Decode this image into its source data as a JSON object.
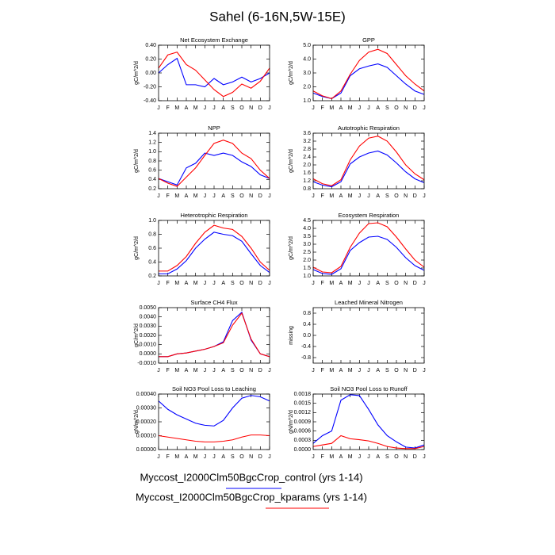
{
  "title": "Sahel (6-16N,5W-15E)",
  "chart_data": [
    {
      "type": "line",
      "title": "Net Ecosystem Exchange",
      "ylabel": "gC/m^2/d",
      "categories": [
        "J",
        "F",
        "M",
        "A",
        "M",
        "J",
        "J",
        "A",
        "S",
        "O",
        "N",
        "D",
        "J"
      ],
      "ylim": [
        -0.4,
        0.4
      ],
      "yticks": [
        {
          "value": -0.4,
          "label": "-0.40"
        },
        {
          "value": -0.2,
          "label": "-0.20"
        },
        {
          "value": 0,
          "label": "0.00"
        },
        {
          "value": 0.2,
          "label": "0.20"
        },
        {
          "value": 0.4,
          "label": "0.40"
        }
      ],
      "series": [
        {
          "name": "Myccost_I2000Clm50BgcCrop_control (yrs 1-14)",
          "color": "#0000ff",
          "values": [
            0.0,
            0.12,
            0.21,
            -0.17,
            -0.17,
            -0.2,
            -0.08,
            -0.17,
            -0.13,
            -0.06,
            -0.13,
            -0.08,
            0.0
          ]
        },
        {
          "name": "Myccost_I2000Clm50BgcCrop_kparams (yrs 1-14)",
          "color": "#ff0000",
          "values": [
            0.07,
            0.26,
            0.3,
            0.12,
            0.04,
            -0.1,
            -0.24,
            -0.34,
            -0.28,
            -0.16,
            -0.22,
            -0.12,
            0.07
          ]
        }
      ]
    },
    {
      "type": "line",
      "title": "GPP",
      "ylabel": "gC/m^2/d",
      "categories": [
        "J",
        "F",
        "M",
        "A",
        "M",
        "J",
        "J",
        "A",
        "S",
        "O",
        "N",
        "D",
        "J"
      ],
      "ylim": [
        1,
        5
      ],
      "yticks": [
        {
          "value": 1,
          "label": "1.0"
        },
        {
          "value": 2,
          "label": "2.0"
        },
        {
          "value": 3,
          "label": "3.0"
        },
        {
          "value": 4,
          "label": "4.0"
        },
        {
          "value": 5,
          "label": "5.0"
        }
      ],
      "series": [
        {
          "color": "#0000ff",
          "values": [
            1.55,
            1.3,
            1.15,
            1.55,
            2.8,
            3.3,
            3.5,
            3.65,
            3.4,
            2.8,
            2.2,
            1.7,
            1.45
          ]
        },
        {
          "color": "#ff0000",
          "values": [
            1.7,
            1.35,
            1.15,
            1.7,
            2.9,
            3.9,
            4.5,
            4.7,
            4.4,
            3.6,
            2.8,
            2.2,
            1.7
          ]
        }
      ]
    },
    {
      "type": "line",
      "title": "NPP",
      "ylabel": "gC/m^2/d",
      "categories": [
        "J",
        "F",
        "M",
        "A",
        "M",
        "J",
        "J",
        "A",
        "S",
        "O",
        "N",
        "D",
        "J"
      ],
      "ylim": [
        0.2,
        1.4
      ],
      "yticks": [
        0.2,
        0.4,
        0.6,
        0.8,
        {
          "value": 1,
          "label": "1.0"
        },
        1.2,
        1.4
      ],
      "series": [
        {
          "color": "#0000ff",
          "values": [
            0.42,
            0.35,
            0.28,
            0.65,
            0.75,
            0.97,
            0.92,
            0.97,
            0.92,
            0.78,
            0.68,
            0.5,
            0.42
          ]
        },
        {
          "color": "#ff0000",
          "values": [
            0.42,
            0.32,
            0.25,
            0.45,
            0.65,
            0.92,
            1.18,
            1.25,
            1.18,
            0.97,
            0.85,
            0.6,
            0.42
          ]
        }
      ]
    },
    {
      "type": "line",
      "title": "Autotrophic Respiration",
      "ylabel": "gC/m^2/d",
      "categories": [
        "J",
        "F",
        "M",
        "A",
        "M",
        "J",
        "J",
        "A",
        "S",
        "O",
        "N",
        "D",
        "J"
      ],
      "ylim": [
        0.8,
        3.6
      ],
      "yticks": [
        0.8,
        1.2,
        1.6,
        {
          "value": 2,
          "label": "2.0"
        },
        2.4,
        2.8,
        3.2,
        3.6
      ],
      "series": [
        {
          "color": "#0000ff",
          "values": [
            1.15,
            0.98,
            0.9,
            1.15,
            2.05,
            2.4,
            2.6,
            2.7,
            2.5,
            2.1,
            1.65,
            1.3,
            1.1
          ]
        },
        {
          "color": "#ff0000",
          "values": [
            1.3,
            1.05,
            0.95,
            1.25,
            2.25,
            2.95,
            3.35,
            3.45,
            3.2,
            2.65,
            2.0,
            1.55,
            1.25
          ]
        }
      ]
    },
    {
      "type": "line",
      "title": "Heterotrophic Respiration",
      "ylabel": "gC/m^2/d",
      "categories": [
        "J",
        "F",
        "M",
        "A",
        "M",
        "J",
        "J",
        "A",
        "S",
        "O",
        "N",
        "D",
        "J"
      ],
      "ylim": [
        0.2,
        1
      ],
      "yticks": [
        0.2,
        0.4,
        0.6,
        0.8,
        {
          "value": 1,
          "label": "1.0"
        }
      ],
      "series": [
        {
          "color": "#0000ff",
          "values": [
            0.23,
            0.23,
            0.3,
            0.42,
            0.6,
            0.73,
            0.83,
            0.8,
            0.78,
            0.7,
            0.52,
            0.35,
            0.25
          ]
        },
        {
          "color": "#ff0000",
          "values": [
            0.27,
            0.27,
            0.35,
            0.48,
            0.67,
            0.83,
            0.93,
            0.89,
            0.87,
            0.77,
            0.6,
            0.4,
            0.28
          ]
        }
      ]
    },
    {
      "type": "line",
      "title": "Ecosystem Respiration",
      "ylabel": "gC/m^2/d",
      "categories": [
        "J",
        "F",
        "M",
        "A",
        "M",
        "J",
        "J",
        "A",
        "S",
        "O",
        "N",
        "D",
        "J"
      ],
      "ylim": [
        1,
        4.5
      ],
      "yticks": [
        {
          "value": 1,
          "label": "1.0"
        },
        1.5,
        {
          "value": 2,
          "label": "2.0"
        },
        2.5,
        {
          "value": 3,
          "label": "3.0"
        },
        3.5,
        {
          "value": 4,
          "label": "4.0"
        },
        4.5
      ],
      "series": [
        {
          "color": "#0000ff",
          "values": [
            1.4,
            1.15,
            1.1,
            1.45,
            2.6,
            3.1,
            3.45,
            3.5,
            3.3,
            2.8,
            2.15,
            1.65,
            1.35
          ]
        },
        {
          "color": "#ff0000",
          "values": [
            1.55,
            1.25,
            1.2,
            1.6,
            2.8,
            3.7,
            4.3,
            4.35,
            4.1,
            3.45,
            2.7,
            2.0,
            1.55
          ]
        }
      ]
    },
    {
      "type": "line",
      "title": "Surface CH4 Flux",
      "ylabel": "gC/m^2/d",
      "categories": [
        "J",
        "F",
        "M",
        "A",
        "M",
        "J",
        "J",
        "A",
        "S",
        "O",
        "N",
        "D",
        "J"
      ],
      "ylim": [
        -0.001,
        0.005
      ],
      "yticks": [
        {
          "value": -0.001,
          "label": "-0.0010"
        },
        {
          "value": 0,
          "label": "0.0000"
        },
        {
          "value": 0.001,
          "label": "0.0010"
        },
        {
          "value": 0.002,
          "label": "0.0020"
        },
        {
          "value": 0.003,
          "label": "0.0030"
        },
        {
          "value": 0.004,
          "label": "0.0040"
        },
        {
          "value": 0.005,
          "label": "0.0050"
        }
      ],
      "series": [
        {
          "color": "#0000ff",
          "values": [
            -0.0003,
            -0.0003,
            0.0,
            0.0001,
            0.0003,
            0.0005,
            0.0008,
            0.0013,
            0.0036,
            0.0045,
            0.0015,
            0.0,
            -0.0003
          ]
        },
        {
          "color": "#ff0000",
          "values": [
            -0.0003,
            -0.0003,
            0.0,
            0.0001,
            0.0003,
            0.0005,
            0.0008,
            0.0012,
            0.0031,
            0.0044,
            0.0016,
            0.0,
            -0.0003
          ]
        }
      ]
    },
    {
      "type": "line",
      "title": "Leached Mineral Nitrogen",
      "ylabel": "missing",
      "categories": [
        "J",
        "F",
        "M",
        "A",
        "M",
        "J",
        "J",
        "A",
        "S",
        "O",
        "N",
        "D",
        "J"
      ],
      "ylim": [
        -1,
        1
      ],
      "yticks": [
        -0.8,
        -0.4,
        {
          "value": 0,
          "label": "0.0"
        },
        0.4,
        0.8
      ],
      "series": []
    },
    {
      "type": "line",
      "title": "Soil NO3 Pool Loss to Leaching",
      "ylabel": "gN/m^2/d",
      "categories": [
        "J",
        "F",
        "M",
        "A",
        "M",
        "J",
        "J",
        "A",
        "S",
        "O",
        "N",
        "D",
        "J"
      ],
      "ylim": [
        0,
        0.0004
      ],
      "yticks": [
        {
          "value": 0,
          "label": "0.00000"
        },
        {
          "value": 0.0001,
          "label": "0.00010"
        },
        {
          "value": 0.0002,
          "label": "0.00020"
        },
        {
          "value": 0.0003,
          "label": "0.00030"
        },
        {
          "value": 0.0004,
          "label": "0.00040"
        }
      ],
      "series": [
        {
          "color": "#0000ff",
          "values": [
            0.00035,
            0.00029,
            0.00025,
            0.00022,
            0.00019,
            0.000175,
            0.00017,
            0.00021,
            0.0003,
            0.00037,
            0.00039,
            0.00038,
            0.00035
          ]
        },
        {
          "color": "#ff0000",
          "values": [
            0.0001,
            9e-05,
            8e-05,
            7e-05,
            6e-05,
            5.5e-05,
            5.5e-05,
            6e-05,
            7e-05,
            9e-05,
            0.000105,
            0.000105,
            0.0001
          ]
        }
      ]
    },
    {
      "type": "line",
      "title": "Soil NO3 Pool Loss to Runoff",
      "ylabel": "gN/m^2/d",
      "categories": [
        "J",
        "F",
        "M",
        "A",
        "M",
        "J",
        "J",
        "A",
        "S",
        "O",
        "N",
        "D",
        "J"
      ],
      "ylim": [
        0,
        0.0018
      ],
      "yticks": [
        {
          "value": 0,
          "label": "0.0000"
        },
        {
          "value": 0.0003,
          "label": "0.0003"
        },
        {
          "value": 0.0006,
          "label": "0.0006"
        },
        {
          "value": 0.0009,
          "label": "0.0009"
        },
        {
          "value": 0.0012,
          "label": "0.0012"
        },
        {
          "value": 0.0015,
          "label": "0.0015"
        },
        {
          "value": 0.0018,
          "label": "0.0018"
        }
      ],
      "series": [
        {
          "color": "#0000ff",
          "values": [
            0.0002,
            0.00045,
            0.0006,
            0.0016,
            0.00178,
            0.00175,
            0.0013,
            0.0008,
            0.00045,
            0.00025,
            8e-05,
            5e-05,
            0.00015
          ]
        },
        {
          "color": "#ff0000",
          "values": [
            0.0001,
            0.00015,
            0.0002,
            0.00045,
            0.00035,
            0.00032,
            0.00028,
            0.0002,
            0.0001,
            5e-05,
            3e-05,
            3e-05,
            0.0001
          ]
        }
      ]
    }
  ]
}
